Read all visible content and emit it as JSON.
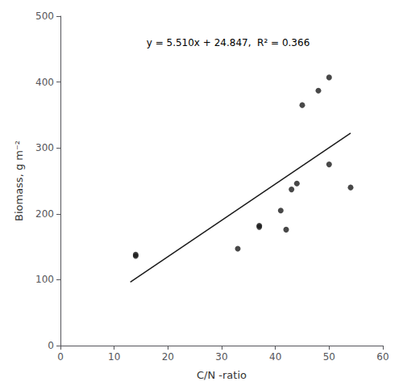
{
  "chart_data": {
    "type": "scatter",
    "xlabel": "C/N -ratio",
    "ylabel": "Biomass, g m⁻²",
    "annotation": "y = 5.510x + 24.847,  R² = 0.366",
    "xlim": [
      0,
      60
    ],
    "ylim": [
      0,
      500
    ],
    "xticks": [
      0,
      10,
      20,
      30,
      40,
      50,
      60
    ],
    "yticks": [
      0,
      100,
      200,
      300,
      400,
      500
    ],
    "grid": false,
    "series": [
      {
        "type": "scatter",
        "marker": "circle",
        "color": "#1a1a1a",
        "x": [
          14,
          14,
          33,
          37,
          37,
          41,
          42,
          43,
          44,
          45,
          48,
          50,
          50,
          54
        ],
        "values": [
          136,
          138,
          147,
          180,
          182,
          205,
          176,
          237,
          246,
          365,
          387,
          407,
          275,
          240
        ]
      },
      {
        "type": "line",
        "line_style": "solid",
        "color": "#1a1a1a",
        "x": [
          13,
          54
        ],
        "values": [
          96.477,
          322.387
        ]
      }
    ]
  }
}
